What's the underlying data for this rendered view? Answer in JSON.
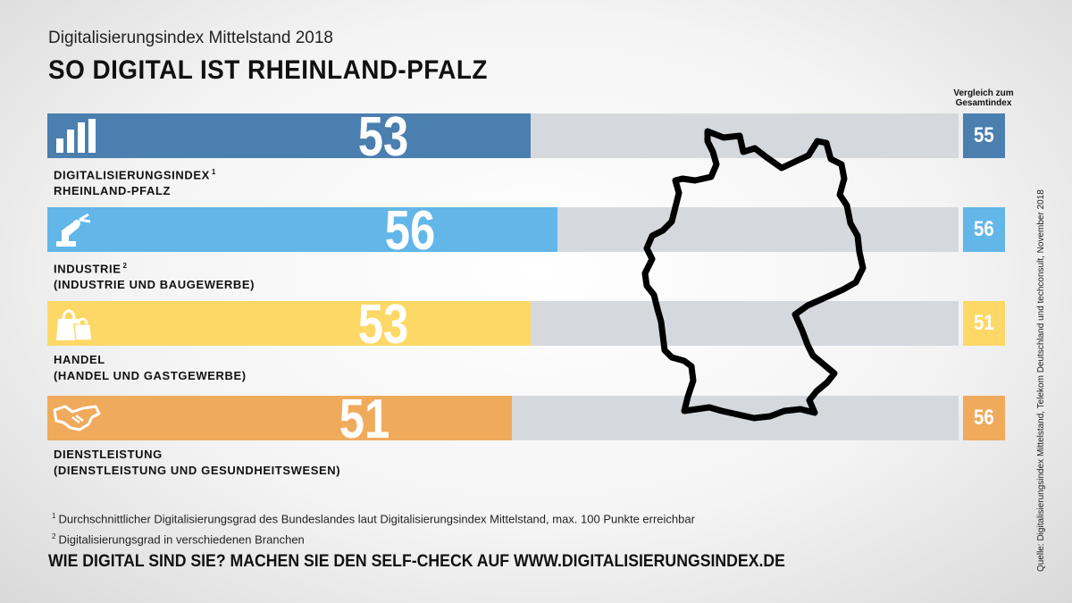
{
  "header": {
    "subtitle": "Digitalisierungsindex Mittelstand 2018",
    "title": "SO DIGITAL IST RHEINLAND-PFALZ",
    "comparison_header_line1": "Vergleich zum",
    "comparison_header_line2": "Gesamtindex"
  },
  "chart_data": {
    "type": "bar",
    "orientation": "horizontal",
    "xlim": [
      0,
      100
    ],
    "categories": [
      "DIGITALISIERUNGSINDEX RHEINLAND-PFALZ",
      "INDUSTRIE (INDUSTRIE UND BAUGEWERBE)",
      "HANDEL (HANDEL UND GASTGEWERBE)",
      "DIENSTLEISTUNG (DIENSTLEISTUNG UND GESUNDHEITSWESEN)"
    ],
    "rows": [
      {
        "label_line1": "DIGITALISIERUNGSINDEX",
        "footnote_mark": "1",
        "label_line2": "RHEINLAND-PFALZ",
        "value": 53,
        "value_label": "53",
        "comparison": 55,
        "comparison_label": "55",
        "color": "#4a7fb0",
        "icon": "bar-chart-icon"
      },
      {
        "label_line1": "INDUSTRIE",
        "footnote_mark": "2",
        "label_line2": "(INDUSTRIE UND BAUGEWERBE)",
        "value": 56,
        "value_label": "56",
        "comparison": 56,
        "comparison_label": "56",
        "color": "#62b6e8",
        "icon": "robot-arm-icon"
      },
      {
        "label_line1": "HANDEL",
        "footnote_mark": "",
        "label_line2": "(HANDEL UND GASTGEWERBE)",
        "value": 53,
        "value_label": "53",
        "comparison": 51,
        "comparison_label": "51",
        "color": "#fdd866",
        "icon": "shopping-bags-icon"
      },
      {
        "label_line1": "DIENSTLEISTUNG",
        "footnote_mark": "",
        "label_line2": "(DIENSTLEISTUNG UND GESUNDHEITSWESEN)",
        "value": 51,
        "value_label": "51",
        "comparison": 56,
        "comparison_label": "56",
        "color": "#f0aa5c",
        "icon": "handshake-icon"
      }
    ]
  },
  "map": {
    "icon": "germany-outline-icon"
  },
  "footnotes": {
    "note1_mark": "1",
    "note1": "Durchschnittlicher Digitalisierungsgrad des Bundeslandes laut Digitalisierungsindex Mittelstand, max. 100 Punkte erreichbar",
    "note2_mark": "2",
    "note2": "Digitalisierungsgrad in verschiedenen Branchen"
  },
  "cta": "WIE DIGITAL SIND SIE? MACHEN SIE DEN SELF-CHECK AUF WWW.DIGITALISIERUNGSINDEX.DE",
  "source": "Quelle: Digitalisierungsindex Mittelstand, Telekom Deutschland und techconsult, November 2018"
}
